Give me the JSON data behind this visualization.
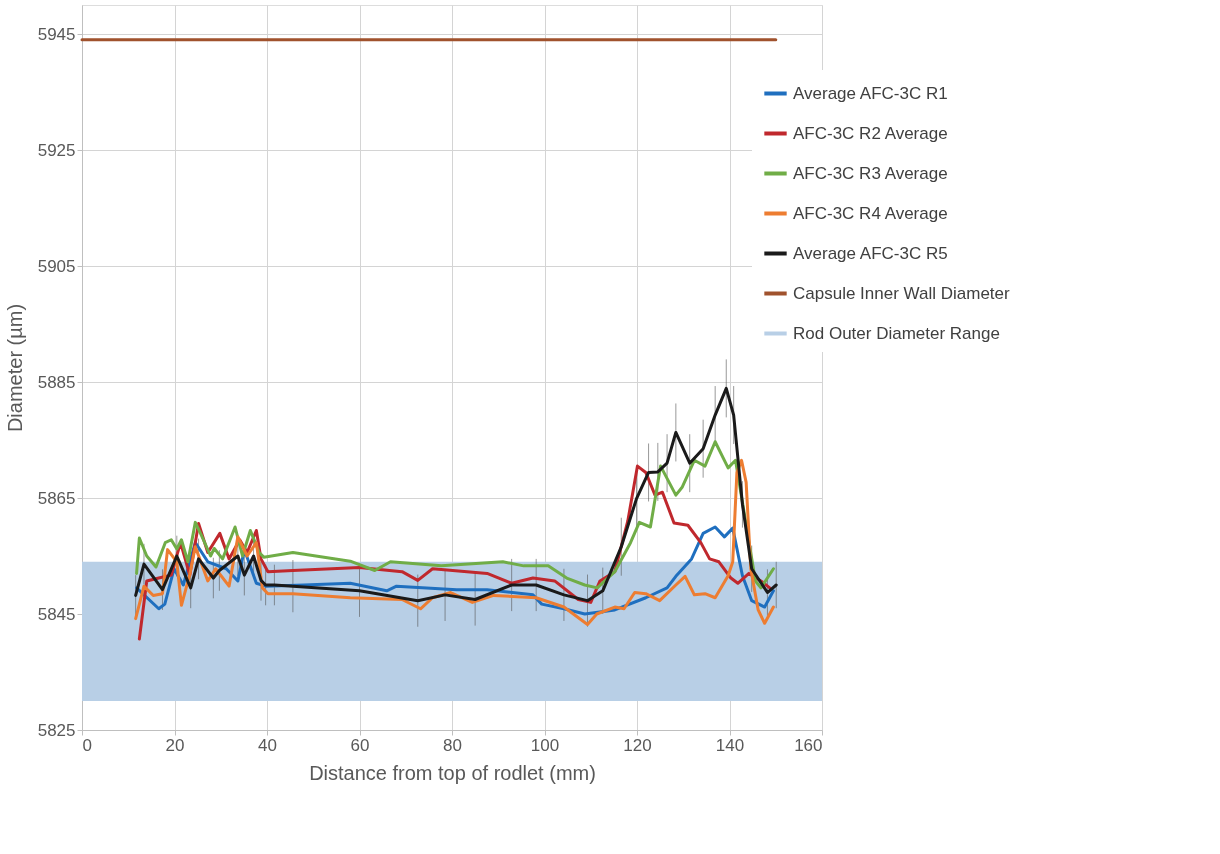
{
  "chart_data": {
    "type": "line",
    "xlabel": "Distance from top of rodlet (mm)",
    "ylabel": "Diameter (µm)",
    "xlim": [
      0,
      160
    ],
    "xticks": [
      0,
      20,
      40,
      60,
      80,
      100,
      120,
      140,
      160
    ],
    "ylim": [
      5825,
      5950
    ],
    "yticks": [
      5825,
      5845,
      5865,
      5885,
      5905,
      5925,
      5945
    ],
    "grid": true,
    "legend": "right",
    "line_style": "solid",
    "marker": "none",
    "bands": [
      {
        "axis": "y",
        "from": 5830,
        "to": 5854,
        "label": "Rod Outer Diameter Range",
        "color": "#b8cfe6"
      }
    ],
    "series": [
      {
        "name": "Average AFC-3C R1",
        "color": "#1f6fbf",
        "x": [
          11.8,
          16.6,
          17.9,
          19.9,
          21.9,
          24.5,
          27.2,
          31.2,
          33.7,
          35.1,
          37.7,
          39.7,
          48,
          58,
          65.9,
          68,
          81,
          87.6,
          97.5,
          99.4,
          104.2,
          108.7,
          115.2,
          121.9,
          126.5,
          128.4,
          131.8,
          134.3,
          136.9,
          138.9,
          140.7,
          142.8,
          144.8,
          147.6,
          149.5
        ],
        "values": [
          5849.5,
          5845.9,
          5846.7,
          5852.8,
          5850,
          5857.3,
          5854,
          5852.8,
          5850.7,
          5856.1,
          5850.3,
          5849.8,
          5850,
          5850.3,
          5849,
          5849.8,
          5849.2,
          5849.2,
          5848.3,
          5846.7,
          5845.9,
          5845,
          5845.7,
          5847.8,
          5849.5,
          5851.5,
          5854.5,
          5858.9,
          5860,
          5858.3,
          5859.8,
          5851.6,
          5847.3,
          5846.2,
          5849
        ]
      },
      {
        "name": "AFC-3C R2 Average",
        "color": "#c0282d",
        "x": [
          12.4,
          14,
          16.6,
          19.3,
          21.3,
          23.3,
          25.2,
          27.2,
          29.8,
          31.8,
          34.1,
          35.7,
          37.7,
          38.7,
          40.2,
          45.6,
          60,
          69.2,
          72.6,
          75.8,
          87.6,
          92.9,
          97.5,
          102.2,
          107.3,
          110,
          112,
          115.2,
          118,
          120.1,
          121.9,
          123.9,
          125.5,
          128,
          131,
          133.8,
          135.7,
          137.7,
          140.3,
          141.8,
          144.2,
          146.8,
          148.7
        ],
        "values": [
          5840.7,
          5850.7,
          5851.2,
          5851.7,
          5857.3,
          5851.7,
          5860.6,
          5855.6,
          5858.9,
          5854.5,
          5857.8,
          5855.6,
          5859.4,
          5854.5,
          5852.3,
          5852.5,
          5853,
          5852.3,
          5850.8,
          5852.8,
          5852,
          5850.3,
          5851.2,
          5850.7,
          5847.5,
          5847,
          5850.7,
          5852.3,
          5861,
          5870.5,
          5869.4,
          5865.5,
          5866,
          5860.7,
          5860.3,
          5857.3,
          5854.5,
          5854,
          5851.2,
          5850.3,
          5852,
          5850.7,
          5849.5
        ]
      },
      {
        "name": "AFC-3C R3 Average",
        "color": "#70ad47",
        "x": [
          11.8,
          12.4,
          14,
          16,
          18,
          19.3,
          20.5,
          21.5,
          22.9,
          24.5,
          25.8,
          27.8,
          28.6,
          30.4,
          33.1,
          34.7,
          36.4,
          38.3,
          39.3,
          45.6,
          58,
          63.3,
          66.7,
          77.7,
          91,
          95.5,
          100.8,
          104.8,
          108.7,
          111.4,
          115.2,
          118.6,
          120.5,
          122.9,
          125.1,
          128.4,
          129.8,
          132.4,
          134.7,
          136.9,
          139.7,
          141.3,
          145.6,
          146.8,
          149.5
        ],
        "values": [
          5852,
          5858.1,
          5855,
          5853.1,
          5857.3,
          5857.8,
          5856.2,
          5857.8,
          5854,
          5860.8,
          5858.6,
          5855,
          5856.3,
          5854.5,
          5860,
          5855,
          5859.4,
          5855.6,
          5854.8,
          5855.6,
          5854.1,
          5852.5,
          5854,
          5853.3,
          5854,
          5853.3,
          5853.3,
          5851.2,
          5850,
          5849.5,
          5852.3,
          5857.3,
          5860.8,
          5860,
          5870.5,
          5865.5,
          5866.9,
          5871.5,
          5870.5,
          5874.7,
          5870.2,
          5871.5,
          5850.7,
          5849.5,
          5852.8
        ]
      },
      {
        "name": "AFC-3C R4 Average",
        "color": "#ed7d31",
        "x": [
          11.6,
          13.4,
          15.4,
          17.4,
          18.5,
          20.5,
          21.5,
          23.3,
          24.5,
          27.2,
          28.9,
          31.8,
          33.7,
          35.7,
          37.7,
          39,
          40.2,
          45.6,
          58,
          69.2,
          73.2,
          75.8,
          79.7,
          84.4,
          89,
          98.2,
          104.2,
          109.3,
          111.3,
          115.2,
          117.2,
          119.5,
          121.9,
          124.9,
          128.4,
          130.4,
          132.4,
          134.7,
          136.9,
          139.7,
          140.7,
          141.6,
          142.6,
          143.6,
          144.6,
          146.2,
          147.6,
          149.5
        ],
        "values": [
          5844.2,
          5849.8,
          5848.2,
          5848.5,
          5856.1,
          5854,
          5846.5,
          5851.8,
          5856.6,
          5850.7,
          5852.8,
          5849.8,
          5858.3,
          5855,
          5857.3,
          5849.5,
          5848.5,
          5848.5,
          5847.8,
          5847.5,
          5845.9,
          5847.8,
          5848.7,
          5847,
          5848.2,
          5847.8,
          5846.2,
          5843.2,
          5845,
          5846.2,
          5845.9,
          5848.7,
          5848.5,
          5847.3,
          5850,
          5851.5,
          5848.3,
          5848.5,
          5847.8,
          5851.6,
          5854,
          5869.4,
          5871.5,
          5867.7,
          5852.8,
          5845.7,
          5843.4,
          5846.2
        ]
      },
      {
        "name": "Average AFC-3C R5",
        "color": "#1a1a1a",
        "x": [
          11.6,
          13.4,
          17.4,
          20.5,
          23.5,
          25.2,
          28.4,
          29.7,
          33.7,
          35.1,
          37.1,
          38.7,
          39.7,
          41.6,
          45.6,
          60,
          72.6,
          78.5,
          85,
          92.9,
          98.2,
          104.2,
          109.3,
          112.6,
          116.6,
          119.9,
          122.5,
          124.5,
          126.5,
          128.4,
          131.4,
          134.3,
          136.9,
          139.3,
          140.9,
          142.8,
          144.8,
          148.2,
          150.1
        ],
        "values": [
          5848.2,
          5853.6,
          5849.2,
          5855,
          5849.5,
          5854.5,
          5851.2,
          5852.5,
          5855,
          5851.7,
          5855,
          5850.8,
          5850,
          5850,
          5849.8,
          5849,
          5847.3,
          5848.3,
          5847.5,
          5850,
          5850,
          5848.3,
          5847.3,
          5849,
          5856.6,
          5864.9,
          5869.4,
          5869.5,
          5871,
          5876.3,
          5871,
          5873.5,
          5879.3,
          5883.9,
          5879.3,
          5863.9,
          5852.8,
          5848.7,
          5850
        ],
        "errors": [
          3.5,
          3.5,
          3.5,
          3.5,
          3.5,
          3.5,
          3.5,
          3.5,
          3.5,
          3.5,
          3.5,
          3.5,
          3.5,
          3.5,
          4.5,
          4.5,
          4.5,
          4.5,
          4.5,
          4.5,
          4.5,
          4.5,
          4.5,
          4,
          5,
          5,
          5,
          5,
          5,
          5,
          5,
          5,
          5,
          5,
          5,
          4,
          4,
          4,
          4
        ]
      },
      {
        "name": "Capsule Inner Wall Diameter",
        "color": "#a0522d",
        "x": [
          0,
          150
        ],
        "values": [
          5944,
          5944
        ]
      }
    ]
  }
}
